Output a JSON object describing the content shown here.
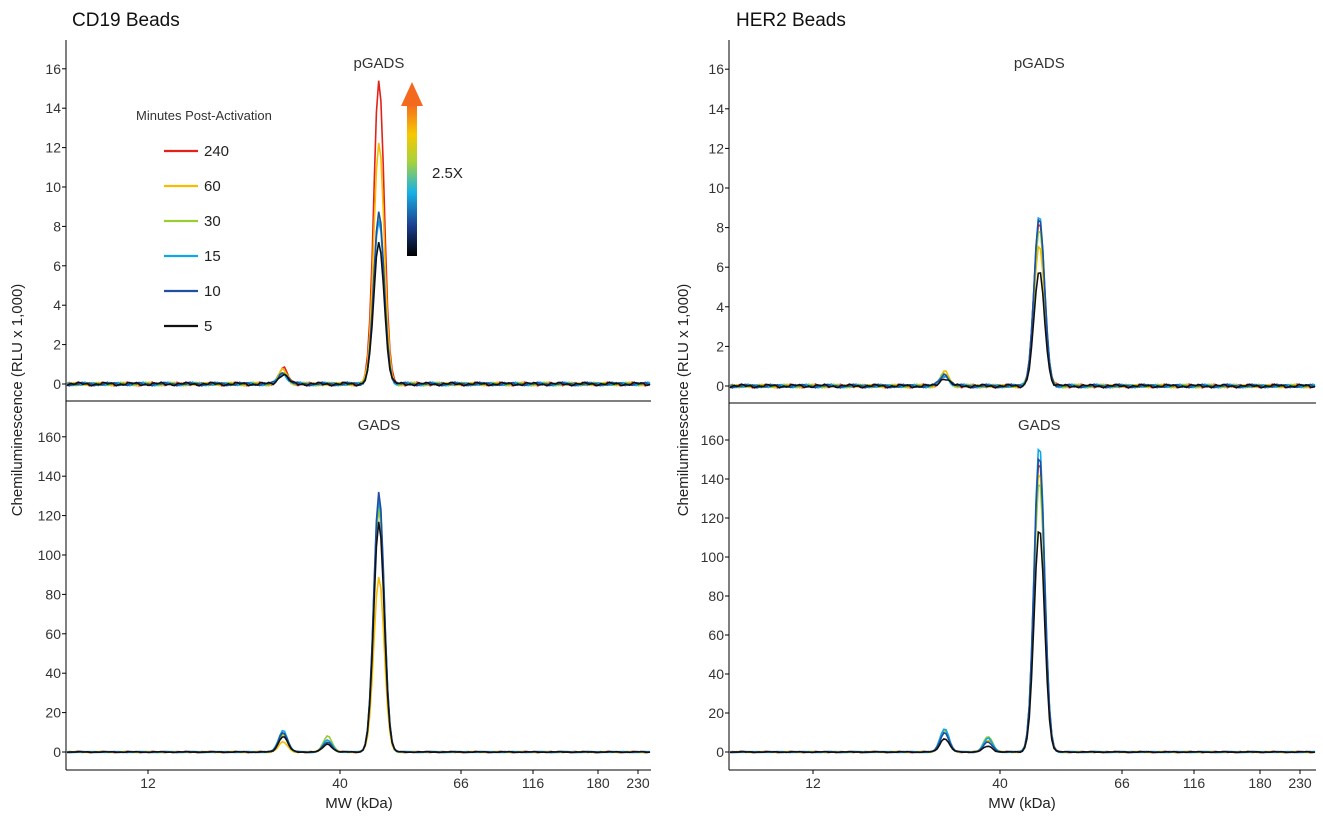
{
  "chart_data": [
    {
      "type": "line",
      "title": "CD19 Beads",
      "ylabel": "Chemiluminescence (RLU x 1,000)",
      "xlabel": "MW (kDa)",
      "x_ticks": [
        "12",
        "40",
        "66",
        "116",
        "180",
        "230"
      ],
      "legend": {
        "title": "Minutes Post-Activation",
        "placement": "top-left",
        "entries": [
          {
            "label": "240",
            "color": "#e32119"
          },
          {
            "label": "60",
            "color": "#f6be00"
          },
          {
            "label": "30",
            "color": "#9acd32"
          },
          {
            "label": "15",
            "color": "#10a7e8"
          },
          {
            "label": "10",
            "color": "#1f4f9e"
          },
          {
            "label": "5",
            "color": "#111111"
          }
        ]
      },
      "annotation": {
        "text": "2.5X",
        "type": "gradient-arrow"
      },
      "panels": [
        {
          "subtitle": "pGADS",
          "ylim": [
            -1,
            17
          ],
          "y_ticks": [
            0,
            2,
            4,
            6,
            8,
            10,
            12,
            14,
            16
          ],
          "series": [
            {
              "name": "240",
              "color": "#e32119",
              "peaks": [
                {
                  "x": 28,
                  "y": 0.8
                },
                {
                  "x": 47,
                  "y": 15.5
                }
              ]
            },
            {
              "name": "60",
              "color": "#f6be00",
              "peaks": [
                {
                  "x": 28,
                  "y": 0.7
                },
                {
                  "x": 47,
                  "y": 12.3
                }
              ]
            },
            {
              "name": "30",
              "color": "#9acd32",
              "peaks": [
                {
                  "x": 28,
                  "y": 0.6
                },
                {
                  "x": 47,
                  "y": 8.6
                }
              ]
            },
            {
              "name": "15",
              "color": "#10a7e8",
              "peaks": [
                {
                  "x": 28,
                  "y": 0.5
                },
                {
                  "x": 47,
                  "y": 8.3
                }
              ]
            },
            {
              "name": "10",
              "color": "#1f4f9e",
              "peaks": [
                {
                  "x": 28,
                  "y": 0.6
                },
                {
                  "x": 47,
                  "y": 8.7
                }
              ]
            },
            {
              "name": "5",
              "color": "#111111",
              "peaks": [
                {
                  "x": 28,
                  "y": 0.5
                },
                {
                  "x": 47,
                  "y": 7.2
                }
              ]
            }
          ]
        },
        {
          "subtitle": "GADS",
          "ylim": [
            -8,
            170
          ],
          "y_ticks": [
            0,
            20,
            40,
            60,
            80,
            100,
            120,
            140,
            160
          ],
          "series": [
            {
              "name": "240",
              "color": "#e32119",
              "peaks": [
                {
                  "x": 28,
                  "y": 9
                },
                {
                  "x": 37,
                  "y": 5
                },
                {
                  "x": 47,
                  "y": 125
                }
              ]
            },
            {
              "name": "60",
              "color": "#f6be00",
              "peaks": [
                {
                  "x": 28,
                  "y": 5
                },
                {
                  "x": 37,
                  "y": 5
                },
                {
                  "x": 47,
                  "y": 89
                }
              ]
            },
            {
              "name": "30",
              "color": "#9acd32",
              "peaks": [
                {
                  "x": 28,
                  "y": 9
                },
                {
                  "x": 37,
                  "y": 8
                },
                {
                  "x": 47,
                  "y": 124
                }
              ]
            },
            {
              "name": "15",
              "color": "#10a7e8",
              "peaks": [
                {
                  "x": 28,
                  "y": 11
                },
                {
                  "x": 37,
                  "y": 6
                },
                {
                  "x": 47,
                  "y": 129
                }
              ]
            },
            {
              "name": "10",
              "color": "#1f4f9e",
              "peaks": [
                {
                  "x": 28,
                  "y": 10
                },
                {
                  "x": 37,
                  "y": 5
                },
                {
                  "x": 47,
                  "y": 132
                }
              ]
            },
            {
              "name": "5",
              "color": "#111111",
              "peaks": [
                {
                  "x": 28,
                  "y": 8
                },
                {
                  "x": 37,
                  "y": 4
                },
                {
                  "x": 47,
                  "y": 117
                }
              ]
            }
          ]
        }
      ]
    },
    {
      "type": "line",
      "title": "HER2 Beads",
      "ylabel": "Chemiluminescence (RLU x 1,000)",
      "xlabel": "MW (kDa)",
      "x_ticks": [
        "12",
        "40",
        "66",
        "116",
        "180",
        "230"
      ],
      "panels": [
        {
          "subtitle": "pGADS",
          "ylim": [
            -1,
            17.5
          ],
          "y_ticks": [
            0,
            2,
            4,
            6,
            8,
            10,
            12,
            14,
            16
          ],
          "series": [
            {
              "name": "240",
              "color": "#e32119",
              "peaks": [
                {
                  "x": 28,
                  "y": 0.5
                },
                {
                  "x": 47,
                  "y": 8.3
                }
              ]
            },
            {
              "name": "60",
              "color": "#f6be00",
              "peaks": [
                {
                  "x": 28,
                  "y": 0.7
                },
                {
                  "x": 47,
                  "y": 7.2
                }
              ]
            },
            {
              "name": "30",
              "color": "#9acd32",
              "peaks": [
                {
                  "x": 28,
                  "y": 0.6
                },
                {
                  "x": 47,
                  "y": 8.0
                }
              ]
            },
            {
              "name": "15",
              "color": "#10a7e8",
              "peaks": [
                {
                  "x": 28,
                  "y": 0.5
                },
                {
                  "x": 47,
                  "y": 8.6
                }
              ]
            },
            {
              "name": "10",
              "color": "#1f4f9e",
              "peaks": [
                {
                  "x": 28,
                  "y": 0.6
                },
                {
                  "x": 47,
                  "y": 8.5
                }
              ]
            },
            {
              "name": "5",
              "color": "#111111",
              "peaks": [
                {
                  "x": 28,
                  "y": 0.4
                },
                {
                  "x": 47,
                  "y": 5.8
                }
              ]
            }
          ]
        },
        {
          "subtitle": "GADS",
          "ylim": [
            -8,
            170
          ],
          "y_ticks": [
            0,
            20,
            40,
            60,
            80,
            100,
            120,
            140,
            160
          ],
          "series": [
            {
              "name": "240",
              "color": "#e32119",
              "peaks": [
                {
                  "x": 28,
                  "y": 10
                },
                {
                  "x": 37,
                  "y": 6
                },
                {
                  "x": 47,
                  "y": 150
                }
              ]
            },
            {
              "name": "60",
              "color": "#f6be00",
              "peaks": [
                {
                  "x": 28,
                  "y": 11
                },
                {
                  "x": 37,
                  "y": 6
                },
                {
                  "x": 47,
                  "y": 145
                }
              ]
            },
            {
              "name": "30",
              "color": "#9acd32",
              "peaks": [
                {
                  "x": 28,
                  "y": 11
                },
                {
                  "x": 37,
                  "y": 8
                },
                {
                  "x": 47,
                  "y": 140
                }
              ]
            },
            {
              "name": "15",
              "color": "#10a7e8",
              "peaks": [
                {
                  "x": 28,
                  "y": 12
                },
                {
                  "x": 37,
                  "y": 7
                },
                {
                  "x": 47,
                  "y": 158
                }
              ]
            },
            {
              "name": "10",
              "color": "#1f4f9e",
              "peaks": [
                {
                  "x": 28,
                  "y": 10
                },
                {
                  "x": 37,
                  "y": 5
                },
                {
                  "x": 47,
                  "y": 153
                }
              ]
            },
            {
              "name": "5",
              "color": "#111111",
              "peaks": [
                {
                  "x": 28,
                  "y": 7
                },
                {
                  "x": 37,
                  "y": 3
                },
                {
                  "x": 47,
                  "y": 115
                }
              ]
            }
          ]
        }
      ]
    }
  ]
}
